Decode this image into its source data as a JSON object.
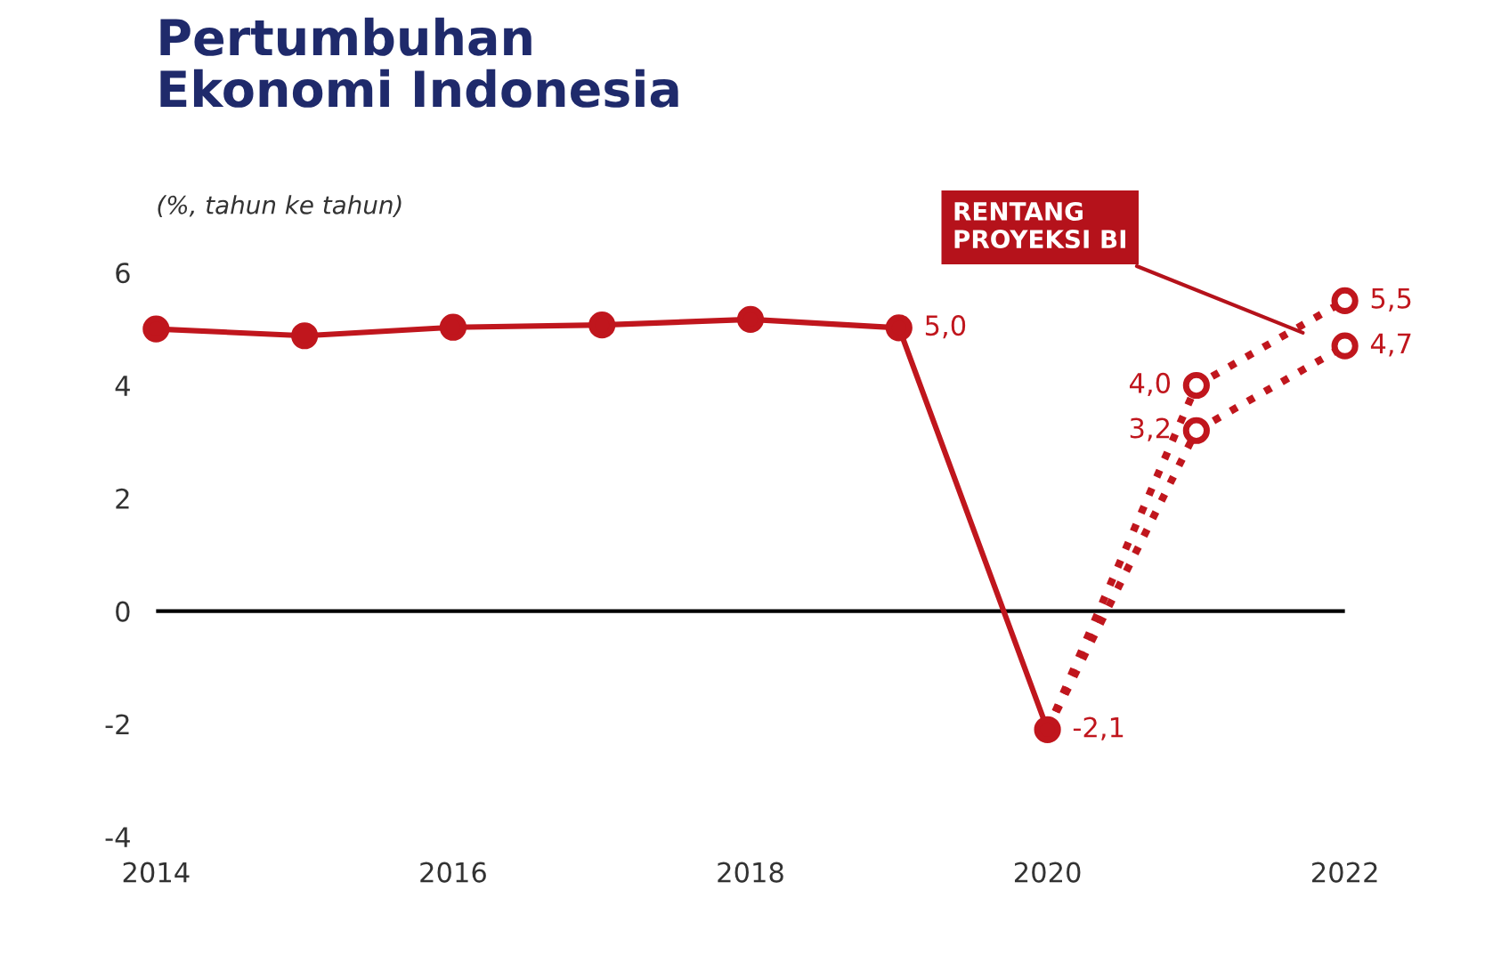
{
  "chart_data": {
    "type": "line",
    "title": "Pertumbuhan\nEkonomi Indonesia",
    "subtitle": "(%, tahun ke tahun)",
    "x": [
      "2014",
      "2015",
      "2016",
      "2017",
      "2018",
      "2019",
      "2020"
    ],
    "series": [
      {
        "color": "#c0161d",
        "line_style": "solid",
        "values": [
          5.0,
          4.88,
          5.03,
          5.07,
          5.17,
          5.02,
          -2.1
        ],
        "value_labels": [
          null,
          null,
          null,
          null,
          null,
          "5,0",
          "-2,1"
        ]
      },
      {
        "color": "#c0161d",
        "line_style": "dotted",
        "x": [
          "2020",
          "2021",
          "2022"
        ],
        "values": [
          -2.1,
          4.0,
          5.5
        ],
        "value_labels": [
          null,
          "4,0",
          "5,5"
        ]
      },
      {
        "color": "#c0161d",
        "line_style": "dotted",
        "x": [
          "2020",
          "2021",
          "2022"
        ],
        "values": [
          -2.1,
          3.2,
          4.7
        ],
        "value_labels": [
          null,
          "3,2",
          "4,7"
        ]
      }
    ],
    "xlim": [
      "2014",
      "2022"
    ],
    "xticks": [
      "2014",
      "2016",
      "2018",
      "2020",
      "2022"
    ],
    "ylim": [
      -4,
      6
    ],
    "yticks": [
      -4,
      -2,
      0,
      2,
      4,
      6
    ],
    "ref_lines": [
      {
        "axis": "y",
        "value": 0,
        "color": "#000000"
      }
    ],
    "annotations": [
      {
        "text": "RENTANG\nPROYEKSI BI",
        "x": "2021-10",
        "y": 4.9
      }
    ],
    "marker": "circle",
    "grid": false,
    "legend": false
  }
}
